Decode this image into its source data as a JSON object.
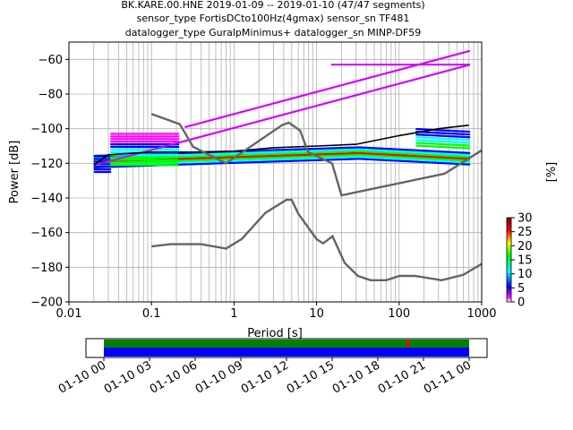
{
  "titles": {
    "line1": "BK.KARE.00.HNE   2019-01-09 -- 2019-01-10  (47/47 segments)",
    "line2": "sensor_type FortisDCto100Hz(4gmax) sensor_sn TF481",
    "line3": "datalogger_type GuralpMinimus+ datalogger_sn MINP-DF59"
  },
  "chart_data": [
    {
      "type": "heatmap",
      "xlabel": "Period [s]",
      "ylabel": "Power [dB]",
      "xscale": "log",
      "xlim": [
        0.01,
        1000
      ],
      "ylim": [
        -200,
        -50
      ],
      "xticks": [
        0.01,
        0.1,
        1,
        10,
        100,
        1000
      ],
      "xtick_labels": [
        "0.01",
        "0.1",
        "1",
        "10",
        "100",
        "1000"
      ],
      "yticks": [
        -200,
        -180,
        -160,
        -140,
        -120,
        -100,
        -80,
        -60
      ],
      "ytick_labels": [
        "−200",
        "−180",
        "−160",
        "−140",
        "−120",
        "−100",
        "−80",
        "−60"
      ],
      "grid": true,
      "colorbar": {
        "label": "[%]",
        "range": [
          0,
          30
        ],
        "ticks": [
          0,
          5,
          10,
          15,
          20,
          25,
          30
        ],
        "tick_labels": [
          "0",
          "5",
          "10",
          "15",
          "20",
          "25",
          "30"
        ],
        "colormap": [
          "#ffffff",
          "#ff00ff",
          "#0000ff",
          "#00ffff",
          "#00ff00",
          "#ffff00",
          "#ff0000",
          "#800000"
        ]
      },
      "series": [
        {
          "role": "mean",
          "color": "#000000",
          "x": [
            0.02,
            0.03,
            0.1,
            0.3,
            1,
            3,
            10,
            30,
            100,
            300,
            700
          ],
          "y": [
            -121,
            -115,
            -113.5,
            -113.5,
            -113,
            -111,
            -110,
            -109,
            -104,
            -100,
            -98
          ]
        },
        {
          "role": "nhnm",
          "color": "#646464",
          "x": [
            0.1,
            0.22,
            0.32,
            0.8,
            3.8,
            4.6,
            6.3,
            7.9,
            15.4,
            20,
            354.8,
            1000
          ],
          "y": [
            -91.5,
            -97.4,
            -110.5,
            -120,
            -98,
            -96.5,
            -101,
            -113.5,
            -120,
            -138.5,
            -126,
            -112.5
          ]
        },
        {
          "role": "nlnm",
          "color": "#646464",
          "x": [
            0.1,
            0.17,
            0.4,
            0.8,
            1.24,
            2.4,
            4.3,
            5,
            6,
            10,
            12,
            15.6,
            21.9,
            31.6,
            45,
            70,
            101,
            154,
            328,
            600,
            1000
          ],
          "y": [
            -168,
            -166.7,
            -166.7,
            -169.2,
            -163.7,
            -148.6,
            -141.1,
            -141.1,
            -149,
            -163.8,
            -166.2,
            -162.1,
            -177.5,
            -185,
            -187.5,
            -187.5,
            -185,
            -185,
            -187.5,
            -184.4,
            -178
          ]
        }
      ],
      "pdf_features": [
        {
          "name": "noise-floor-band",
          "x": [
            0.02,
            700
          ],
          "y_center": [
            -119,
            -112
          ],
          "color": "#ff0000"
        },
        {
          "name": "microseism-band",
          "x": [
            0.03,
            0.2
          ],
          "y": [
            -121,
            -103
          ],
          "color": "#0000ff"
        },
        {
          "name": "upper-magenta-trend",
          "x": [
            0.02,
            700
          ],
          "y": [
            -121,
            -63
          ],
          "color": "#d000ff"
        }
      ]
    },
    {
      "type": "bar",
      "name": "data-availability",
      "xtick_labels": [
        "01-10 00",
        "01-10 03",
        "01-10 06",
        "01-10 09",
        "01-10 12",
        "01-10 15",
        "01-10 18",
        "01-10 21",
        "01-11 00"
      ],
      "coverage": [
        {
          "start_hours": 0,
          "end_hours": 24,
          "color": "#008000"
        },
        {
          "start_hours": 0,
          "end_hours": 24,
          "color": "#0000ff"
        }
      ],
      "gap_marker_hours": 19.9,
      "gap_marker_color": "#ff0000"
    }
  ]
}
